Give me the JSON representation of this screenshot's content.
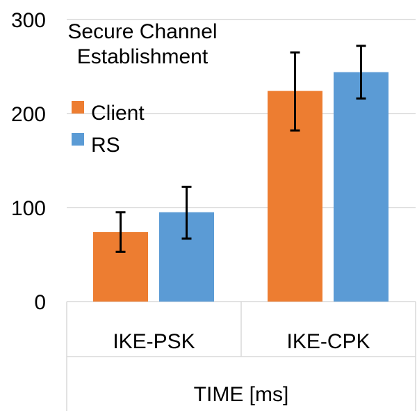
{
  "chart_data": {
    "type": "bar",
    "title": [
      "Secure Channel",
      "Establishment"
    ],
    "xlabel": "TIME [ms]",
    "ylabel": "",
    "ylim": [
      0,
      300
    ],
    "yticks": [
      0,
      100,
      200,
      300
    ],
    "grid": true,
    "legend_position": "top-left",
    "categories": [
      "IKE-PSK",
      "IKE-CPK"
    ],
    "series": [
      {
        "name": "Client",
        "color": "#ED7D31",
        "values": [
          74,
          224
        ],
        "error_low": [
          53,
          182
        ],
        "error_high": [
          95,
          265
        ]
      },
      {
        "name": "RS",
        "color": "#5B9BD5",
        "values": [
          95,
          244
        ],
        "error_low": [
          67,
          216
        ],
        "error_high": [
          122,
          272
        ]
      }
    ]
  }
}
